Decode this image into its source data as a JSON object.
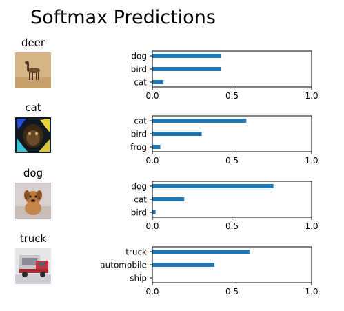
{
  "title": "Softmax Predictions",
  "chart_data": [
    {
      "type": "bar",
      "orientation": "horizontal",
      "image_label": "deer",
      "categories": [
        "dog",
        "bird",
        "cat"
      ],
      "values": [
        0.43,
        0.43,
        0.07
      ],
      "xlim": [
        0,
        1
      ],
      "xticks": [
        "0.0",
        "0.5",
        "1.0"
      ]
    },
    {
      "type": "bar",
      "orientation": "horizontal",
      "image_label": "cat",
      "categories": [
        "cat",
        "bird",
        "frog"
      ],
      "values": [
        0.59,
        0.31,
        0.05
      ],
      "xlim": [
        0,
        1
      ],
      "xticks": [
        "0.0",
        "0.5",
        "1.0"
      ]
    },
    {
      "type": "bar",
      "orientation": "horizontal",
      "image_label": "dog",
      "categories": [
        "dog",
        "cat",
        "bird"
      ],
      "values": [
        0.76,
        0.2,
        0.02
      ],
      "xlim": [
        0,
        1
      ],
      "xticks": [
        "0.0",
        "0.5",
        "1.0"
      ]
    },
    {
      "type": "bar",
      "orientation": "horizontal",
      "image_label": "truck",
      "categories": [
        "truck",
        "automobile",
        "ship"
      ],
      "values": [
        0.61,
        0.39,
        0.0
      ],
      "xlim": [
        0,
        1
      ],
      "xticks": [
        "0.0",
        "0.5",
        "1.0"
      ]
    }
  ],
  "bar_color": "#1f77b4"
}
